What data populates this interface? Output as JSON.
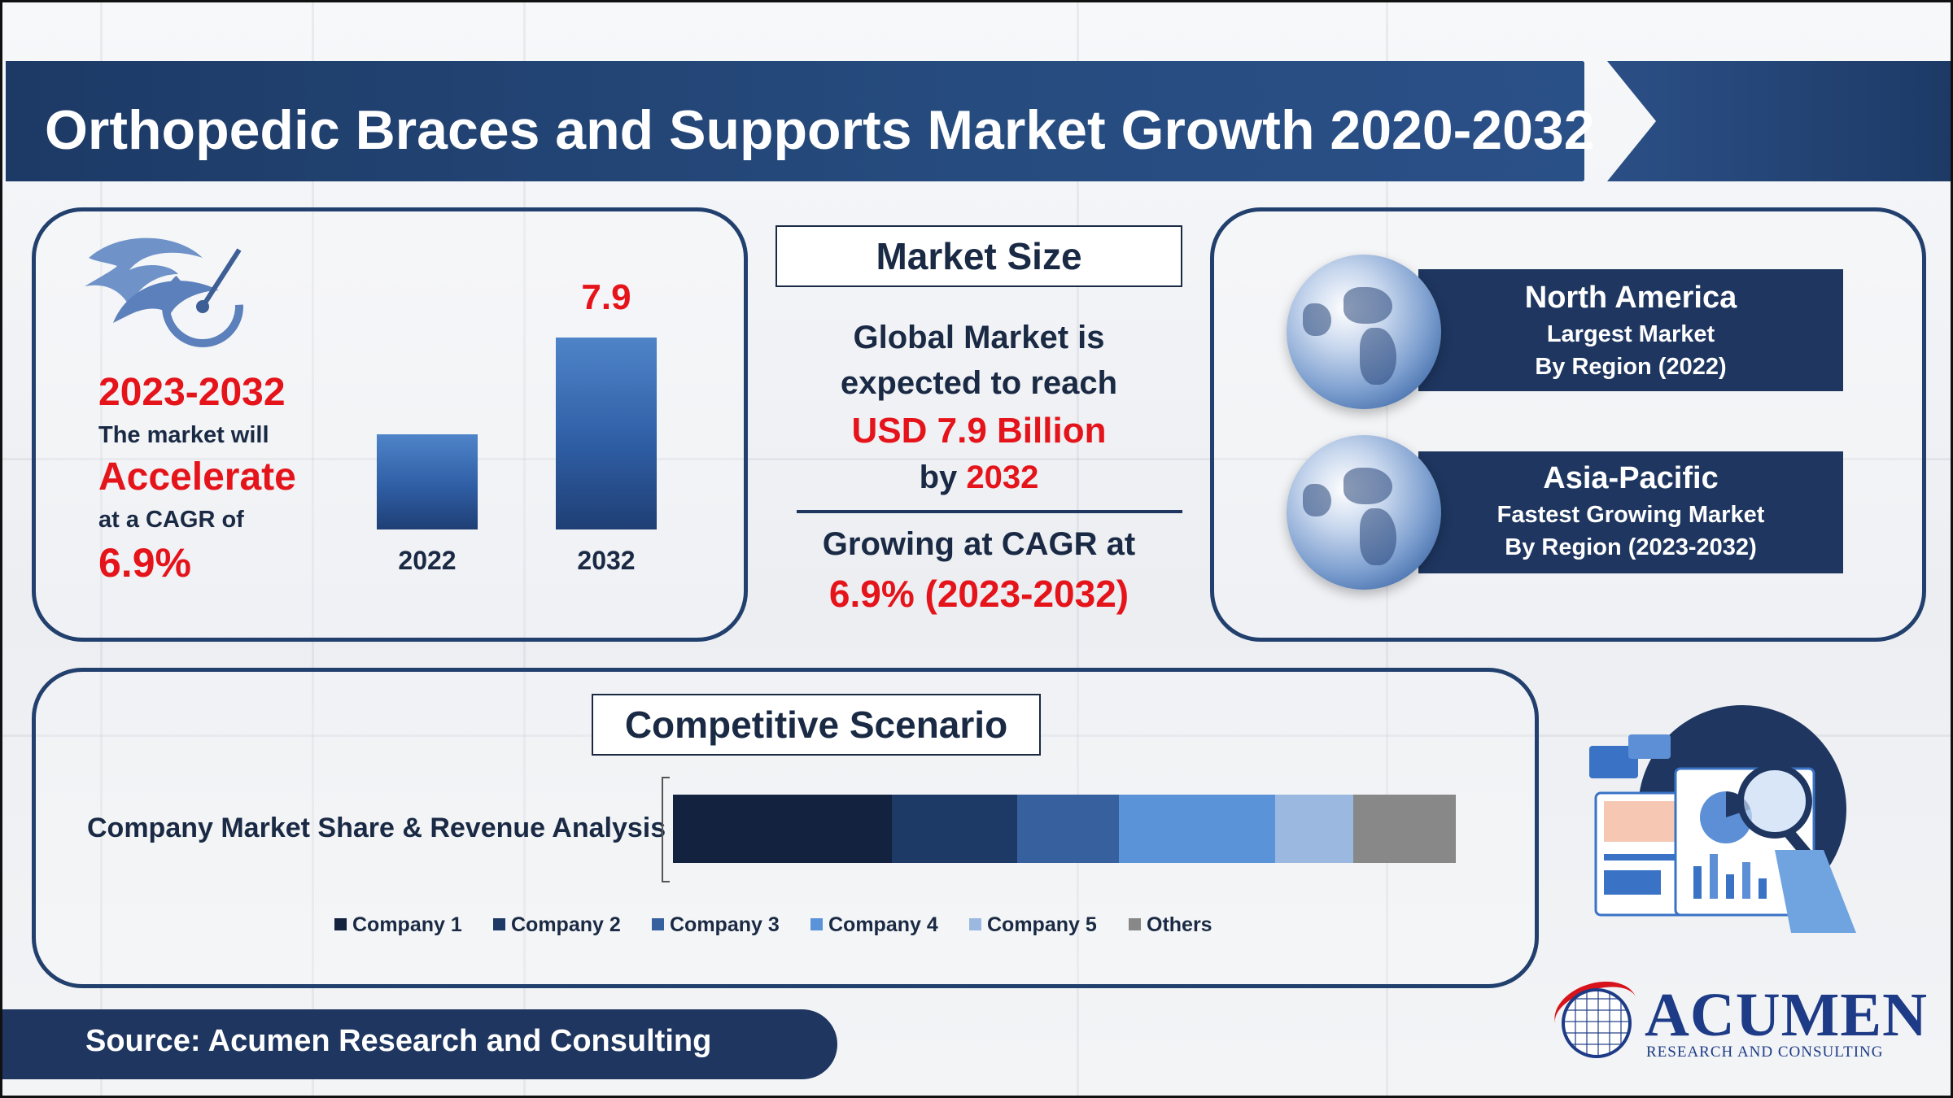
{
  "title": "Orthopedic Braces and Supports Market Growth 2020-2032",
  "left_panel": {
    "period": "2023-2032",
    "line1": "The market will",
    "highlight": "Accelerate",
    "line2": "at a CAGR of",
    "cagr": "6.9%"
  },
  "center": {
    "heading": "Market Size",
    "line1": "Global Market is",
    "line2": "expected to reach",
    "value": "USD 7.9 Billion",
    "by_label": "by",
    "year": "2032",
    "growth_label": "Growing at CAGR at",
    "growth_value": "6.9% (2023-2032)"
  },
  "regions": [
    {
      "name": "North America",
      "desc": "Largest Market",
      "period": "By Region (2022)"
    },
    {
      "name": "Asia-Pacific",
      "desc": "Fastest Growing Market",
      "period": "By Region (2023-2032)"
    }
  ],
  "competitive": {
    "heading": "Competitive Scenario",
    "row_label": "Company Market Share & Revenue Analysis"
  },
  "source": "Source: Acumen Research and Consulting",
  "logo": {
    "name": "ACUMEN",
    "subtitle": "RESEARCH AND CONSULTING"
  },
  "chart_data": [
    {
      "type": "bar",
      "categories": [
        "2022",
        "2032"
      ],
      "values": [
        3.9,
        7.9
      ],
      "data_labels": [
        "",
        "7.9"
      ],
      "ylim": [
        0,
        7.9
      ],
      "grid": false,
      "color": "#2f5ea5"
    },
    {
      "type": "bar",
      "orientation": "horizontal-stacked",
      "categories": [
        "Company Market Share & Revenue Analysis"
      ],
      "series": [
        {
          "name": "Company 1",
          "values": [
            28
          ],
          "color": "#12223f"
        },
        {
          "name": "Company 2",
          "values": [
            16
          ],
          "color": "#1d3a66"
        },
        {
          "name": "Company 3",
          "values": [
            13
          ],
          "color": "#36609e"
        },
        {
          "name": "Company 4",
          "values": [
            20
          ],
          "color": "#5b93d9"
        },
        {
          "name": "Company 5",
          "values": [
            10
          ],
          "color": "#9bb9e0"
        },
        {
          "name": "Others",
          "values": [
            13
          ],
          "color": "#888888"
        }
      ],
      "legend": "bottom"
    }
  ]
}
